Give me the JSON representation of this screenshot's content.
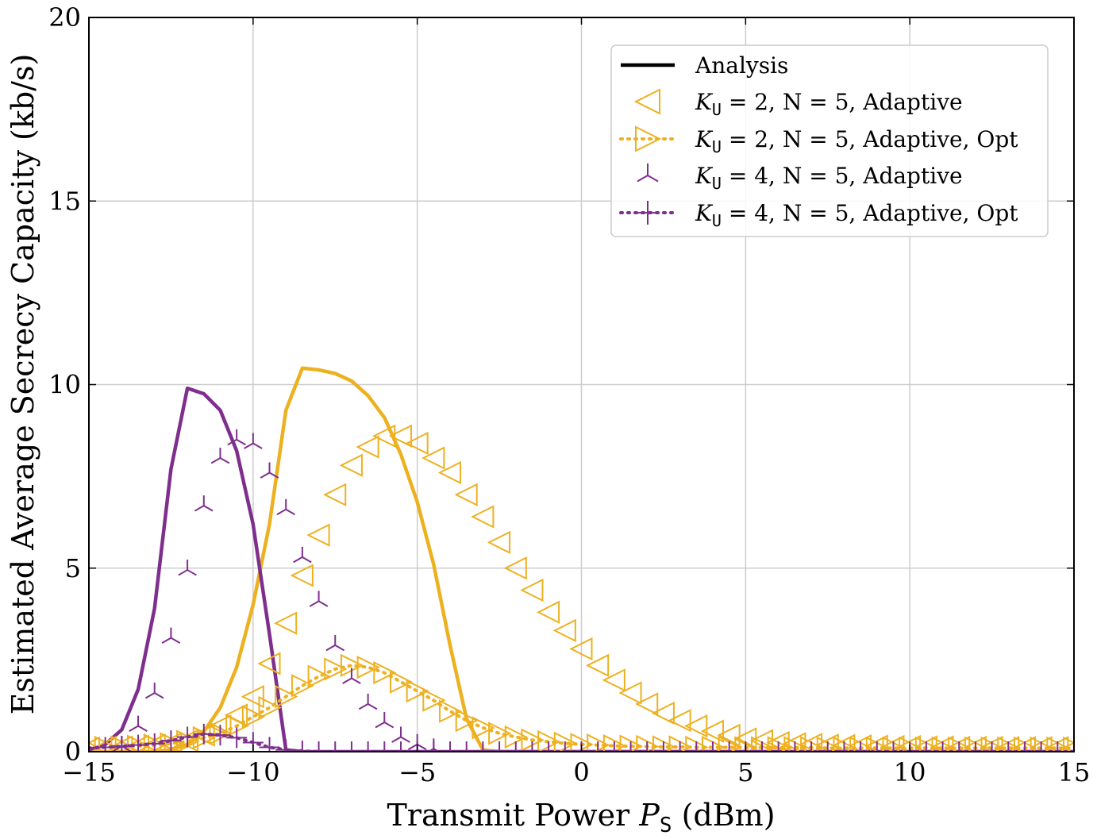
{
  "colors": {
    "yellow": "#EDB120",
    "purple": "#7E2F8E",
    "black": "#000000"
  },
  "chart_data": {
    "type": "line",
    "xlabel": "Transmit Power P_S (dBm)",
    "xlabel_prefix": "Transmit Power ",
    "xlabel_var": "P",
    "xlabel_sub": "S",
    "xlabel_suffix": " (dBm)",
    "ylabel": "Estimated Average Secrecy Capacity (kb/s)",
    "xlim": [
      -15,
      15
    ],
    "ylim": [
      0,
      20
    ],
    "xticks": [
      -15,
      -10,
      -5,
      0,
      5,
      10,
      15
    ],
    "xtick_labels": [
      "−15",
      "−10",
      "−5",
      "0",
      "5",
      "10",
      "15"
    ],
    "yticks": [
      0,
      5,
      10,
      15,
      20
    ],
    "ytick_labels": [
      "0",
      "5",
      "10",
      "15",
      "20"
    ],
    "grid": true,
    "legend_position": "top-right",
    "legend": [
      {
        "label": "Analysis",
        "style": "line",
        "color": "#000000"
      },
      {
        "label": "K_U = 2, N = 5, Adaptive",
        "pre": "K",
        "sub": "U",
        "post": " = 2, N = 5, Adaptive",
        "style": "triangle-left",
        "color": "#EDB120"
      },
      {
        "label": "K_U = 2, N = 5, Adaptive, Opt",
        "pre": "K",
        "sub": "U",
        "post": " = 2, N = 5, Adaptive, Opt",
        "style": "dotted-triangle-right",
        "color": "#EDB120"
      },
      {
        "label": "K_U = 4, N = 5, Adaptive",
        "pre": "K",
        "sub": "U",
        "post": " = 4, N = 5, Adaptive",
        "style": "tri-up",
        "color": "#7E2F8E"
      },
      {
        "label": "K_U = 4, N = 5, Adaptive, Opt",
        "pre": "K",
        "sub": "U",
        "post": " = 4, N = 5, Adaptive, Opt",
        "style": "dotted-plus",
        "color": "#7E2F8E"
      }
    ],
    "series": [
      {
        "name": "Analysis",
        "role": "analysis-K2",
        "color": "#EDB120",
        "marker": "none",
        "dash": "solid",
        "x": [
          -15,
          -14.5,
          -14,
          -13.5,
          -13,
          -12.5,
          -12,
          -11.5,
          -11,
          -10.5,
          -10,
          -9.5,
          -9,
          -8.5,
          -8,
          -7.5,
          -7,
          -6.5,
          -6,
          -5.5,
          -5,
          -4.5,
          -4,
          -3.5,
          -3,
          -2.5,
          -2,
          -1.5,
          -1,
          -0.5,
          0,
          15
        ],
        "y": [
          0,
          0,
          0,
          0,
          0,
          0.05,
          0.2,
          0.55,
          1.2,
          2.3,
          4.0,
          6.2,
          9.3,
          10.45,
          10.4,
          10.3,
          10.1,
          9.7,
          9.1,
          8.1,
          6.8,
          5.1,
          2.9,
          0.9,
          0.05,
          0,
          0,
          0,
          0,
          0,
          0,
          0
        ]
      },
      {
        "name": "Analysis",
        "role": "analysis-K4",
        "color": "#7E2F8E",
        "marker": "none",
        "dash": "solid",
        "x": [
          -15,
          -14.5,
          -14,
          -13.5,
          -13,
          -12.5,
          -12,
          -11.5,
          -11,
          -10.5,
          -10,
          -9.5,
          -9,
          -8.5,
          -8,
          -7,
          -5,
          0,
          15
        ],
        "y": [
          0.05,
          0.2,
          0.6,
          1.7,
          3.9,
          7.7,
          9.9,
          9.75,
          9.3,
          8.2,
          6.2,
          3.2,
          0.05,
          0,
          0,
          0,
          0,
          0,
          0
        ]
      },
      {
        "name": "K_U = 2, N = 5, Adaptive",
        "color": "#EDB120",
        "marker": "triangle-left",
        "dash": "none",
        "x": [
          -15,
          -14.5,
          -14,
          -13.5,
          -13,
          -12.5,
          -12,
          -11.5,
          -11,
          -10.5,
          -10,
          -9.5,
          -9,
          -8.5,
          -8,
          -7.5,
          -7,
          -6.5,
          -6,
          -5.5,
          -5,
          -4.5,
          -4,
          -3.5,
          -3,
          -2.5,
          -2,
          -1.5,
          -1,
          -0.5,
          0,
          0.5,
          1,
          1.5,
          2,
          2.5,
          3,
          3.5,
          4,
          4.5,
          5,
          5.5,
          6,
          6.5,
          7,
          7.5,
          8,
          8.5,
          9,
          9.5,
          10,
          10.5,
          11,
          11.5,
          12,
          12.5,
          13,
          13.5,
          14,
          14.5,
          15
        ],
        "y": [
          0.1,
          0.12,
          0.13,
          0.15,
          0.18,
          0.22,
          0.3,
          0.45,
          0.7,
          1.0,
          1.5,
          2.4,
          3.5,
          4.8,
          5.9,
          7.0,
          7.8,
          8.3,
          8.6,
          8.6,
          8.4,
          8.0,
          7.6,
          7.0,
          6.4,
          5.7,
          5.0,
          4.4,
          3.8,
          3.3,
          2.8,
          2.35,
          1.95,
          1.6,
          1.3,
          1.05,
          0.85,
          0.7,
          0.56,
          0.45,
          0.35,
          0.3,
          0.25,
          0.22,
          0.2,
          0.18,
          0.17,
          0.16,
          0.15,
          0.14,
          0.14,
          0.13,
          0.13,
          0.12,
          0.12,
          0.12,
          0.11,
          0.11,
          0.11,
          0.11,
          0.1
        ]
      },
      {
        "name": "K_U = 2, N = 5, Adaptive, Opt",
        "color": "#EDB120",
        "marker": "triangle-right",
        "dash": "dotted",
        "x": [
          -15,
          -14.5,
          -14,
          -13.5,
          -13,
          -12.5,
          -12,
          -11.5,
          -11,
          -10.5,
          -10,
          -9.5,
          -9,
          -8.5,
          -8,
          -7.5,
          -7,
          -6.5,
          -6,
          -5.5,
          -5,
          -4.5,
          -4,
          -3.5,
          -3,
          -2.5,
          -2,
          -1.5,
          -1,
          -0.5,
          0,
          0.5,
          1,
          1.5,
          2,
          2.5,
          3,
          3.5,
          4,
          4.5,
          5,
          5.5,
          6,
          6.5,
          7,
          7.5,
          8,
          8.5,
          9,
          9.5,
          10,
          10.5,
          11,
          11.5,
          12,
          12.5,
          13,
          13.5,
          14,
          14.5,
          15
        ],
        "y": [
          0.1,
          0.12,
          0.13,
          0.15,
          0.18,
          0.22,
          0.28,
          0.38,
          0.5,
          0.7,
          0.95,
          1.2,
          1.5,
          1.8,
          2.05,
          2.25,
          2.35,
          2.3,
          2.15,
          1.9,
          1.65,
          1.4,
          1.1,
          0.85,
          0.65,
          0.5,
          0.4,
          0.32,
          0.27,
          0.23,
          0.2,
          0.18,
          0.16,
          0.15,
          0.14,
          0.13,
          0.13,
          0.12,
          0.12,
          0.12,
          0.11,
          0.11,
          0.11,
          0.11,
          0.11,
          0.1,
          0.1,
          0.1,
          0.1,
          0.1,
          0.1,
          0.1,
          0.1,
          0.1,
          0.1,
          0.1,
          0.1,
          0.1,
          0.1,
          0.1,
          0.1
        ]
      },
      {
        "name": "K_U = 4, N = 5, Adaptive",
        "color": "#7E2F8E",
        "marker": "tri-up",
        "dash": "none",
        "x": [
          -14,
          -13.5,
          -13,
          -12.5,
          -12,
          -11.5,
          -11,
          -10.5,
          -10,
          -9.5,
          -9,
          -8.5,
          -8,
          -7.5,
          -7,
          -6.5,
          -6,
          -5.5,
          -5,
          -4.5
        ],
        "y": [
          0.15,
          0.7,
          1.6,
          3.1,
          4.95,
          6.7,
          8.0,
          8.5,
          8.4,
          7.6,
          6.6,
          5.3,
          4.1,
          2.9,
          2.0,
          1.3,
          0.8,
          0.4,
          0.2,
          0.08
        ]
      },
      {
        "name": "K_U = 4, N = 5, Adaptive, Opt",
        "color": "#7E2F8E",
        "marker": "plus",
        "dash": "dotted",
        "x": [
          -15,
          -14.5,
          -14,
          -13.5,
          -13,
          -12.5,
          -12,
          -11.5,
          -11,
          -10.5,
          -10,
          -9.5,
          -9,
          -8.5,
          -8,
          -7.5,
          -7,
          -6.5,
          -6,
          -5.5,
          -5,
          -4.5,
          -4,
          -3.5,
          -3,
          -2.5,
          -2,
          -1.5,
          -1,
          -0.5,
          0,
          0.5,
          1,
          1.5,
          2,
          2.5,
          3,
          3.5,
          4,
          4.5,
          5,
          5.5,
          6,
          6.5,
          7,
          7.5,
          8,
          8.5,
          9,
          9.5,
          10,
          10.5,
          11,
          11.5,
          12,
          12.5,
          13,
          13.5,
          14,
          14.5,
          15
        ],
        "y": [
          0.1,
          0.12,
          0.15,
          0.18,
          0.22,
          0.3,
          0.4,
          0.48,
          0.45,
          0.38,
          0.25,
          0.12,
          0.05,
          0.02,
          0,
          0,
          0,
          0,
          0,
          0,
          0,
          0,
          0,
          0,
          0,
          0,
          0,
          0,
          0,
          0,
          0,
          0,
          0,
          0,
          0,
          0,
          0,
          0,
          0,
          0,
          0,
          0,
          0,
          0,
          0,
          0,
          0,
          0,
          0,
          0,
          0,
          0,
          0,
          0,
          0,
          0,
          0,
          0,
          0,
          0,
          0
        ]
      }
    ]
  }
}
